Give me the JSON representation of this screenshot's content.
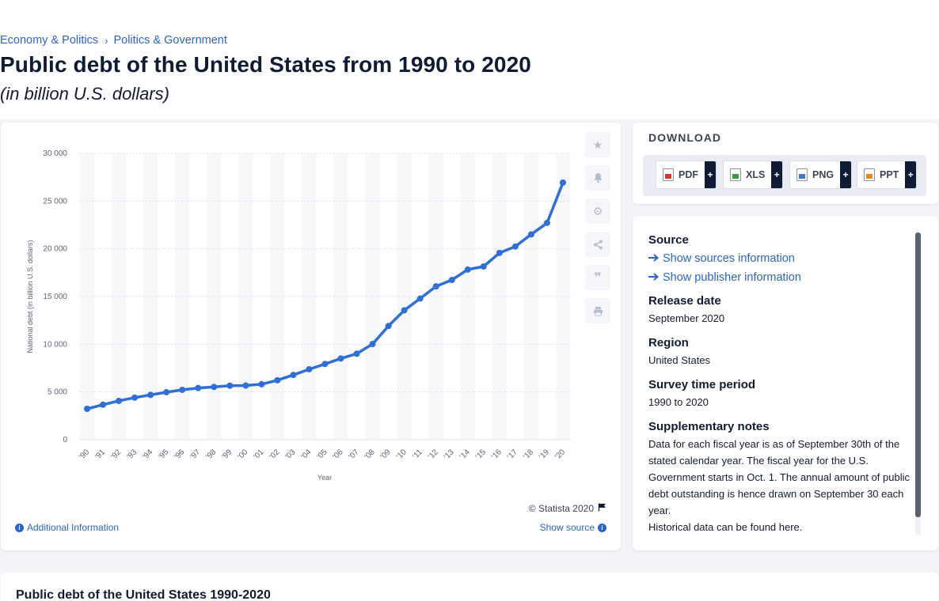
{
  "breadcrumb": {
    "item1": "Economy & Politics",
    "separator": "›",
    "item2": "Politics & Government"
  },
  "page": {
    "title": "Public debt of the United States from 1990 to 2020",
    "subtitle": "(in billion U.S. dollars)"
  },
  "chart_footer": {
    "copyright": "© Statista 2020",
    "additional_info": "Additional Information",
    "show_source": "Show source"
  },
  "download": {
    "title": "DOWNLOAD",
    "buttons": [
      {
        "label": "PDF",
        "icon": "pdf-file-icon",
        "color": "#d9352c"
      },
      {
        "label": "XLS",
        "icon": "xls-file-icon",
        "color": "#3d9a3d"
      },
      {
        "label": "PNG",
        "icon": "png-file-icon",
        "color": "#3f78c8"
      },
      {
        "label": "PPT",
        "icon": "ppt-file-icon",
        "color": "#e28a1e"
      }
    ],
    "plus": "+"
  },
  "info": {
    "source_heading": "Source",
    "show_sources": "Show sources information",
    "show_publisher": "Show publisher information",
    "release_heading": "Release date",
    "release_value": "September 2020",
    "region_heading": "Region",
    "region_value": "United States",
    "survey_heading": "Survey time period",
    "survey_value": "1990 to 2020",
    "notes_heading": "Supplementary notes",
    "notes_value": "Data for each fiscal year is as of September 30th of the stated calendar year. The fiscal year for the U.S. Government starts in Oct. 1. The annual amount of public debt outstanding is hence drawn on September 30 each year.",
    "notes_more": "Historical data can be found here."
  },
  "bottom": {
    "title": "Public debt of the United States 1990-2020"
  },
  "colors": {
    "line": "#2f6fd6",
    "accent": "#2c64c4",
    "text": "#0f1c33"
  },
  "chart_data": {
    "type": "line",
    "title": "Public debt of the United States from 1990 to 2020",
    "subtitle": "(in billion U.S. dollars)",
    "xlabel": "Year",
    "ylabel": "National debt (in billion U.S. dollars)",
    "categories": [
      "'90",
      "'91",
      "'92",
      "'93",
      "'94",
      "'95",
      "'96",
      "'97",
      "'98",
      "'99",
      "'00",
      "'01",
      "'02",
      "'03",
      "'04",
      "'05",
      "'06",
      "'07",
      "'08",
      "'09",
      "'10",
      "'11",
      "'12",
      "'13",
      "'14",
      "'15",
      "'16",
      "'17",
      "'18",
      "'19",
      "'20"
    ],
    "values": [
      3233,
      3665,
      4065,
      4411,
      4693,
      4974,
      5225,
      5413,
      5526,
      5656,
      5674,
      5807,
      6228,
      6783,
      7379,
      7933,
      8507,
      9008,
      10025,
      11910,
      13562,
      14790,
      16066,
      16738,
      17824,
      18151,
      19573,
      20245,
      21516,
      22719,
      26945
    ],
    "yticks": [
      "0",
      "5 000",
      "10 000",
      "15 000",
      "20 000",
      "25 000",
      "30 000"
    ],
    "ylim": [
      0,
      30000
    ],
    "grid": true,
    "legend": "none"
  }
}
